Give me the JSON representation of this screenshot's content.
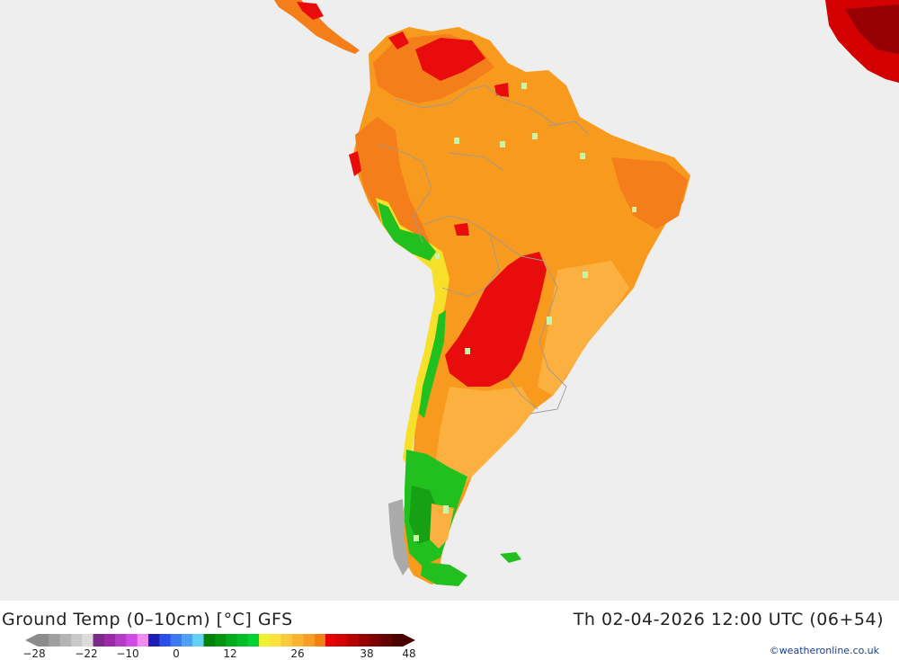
{
  "header": {
    "title": "Ground Temp (0–10cm) [°C] GFS",
    "valid_time": "Th 02-04-2026 12:00 UTC (06+54)"
  },
  "legend": {
    "ticks": [
      "−28",
      "−22",
      "−10",
      "0",
      "12",
      "26",
      "38",
      "48"
    ],
    "colors": [
      "#8c8c8c",
      "#a0a0a0",
      "#b4b4b4",
      "#c8c8c8",
      "#dcdcdc",
      "#7a2a8a",
      "#9a2aa8",
      "#b43cc8",
      "#d24be6",
      "#f08cf0",
      "#1e1eb4",
      "#2850e6",
      "#3c78f0",
      "#50a0f5",
      "#64d2f5",
      "#00820a",
      "#009614",
      "#00aa1e",
      "#00be28",
      "#00d232",
      "#f0f032",
      "#fae13c",
      "#fac83c",
      "#fab432",
      "#fa9b28",
      "#f08214",
      "#e60000",
      "#d20000",
      "#b40000",
      "#960000",
      "#7d0000",
      "#640000",
      "#4b0000"
    ]
  },
  "colors": {
    "ocean": "#eeeeee",
    "land_orange": "#f89a1e",
    "land_dark_orange": "#f47e1a",
    "land_red": "#e80c0c",
    "land_light_orange": "#fbb040",
    "land_yellow": "#f6e02a",
    "land_green": "#22c01e",
    "land_dark_green": "#16a014"
  },
  "credit": "©weatheronline.co.uk"
}
